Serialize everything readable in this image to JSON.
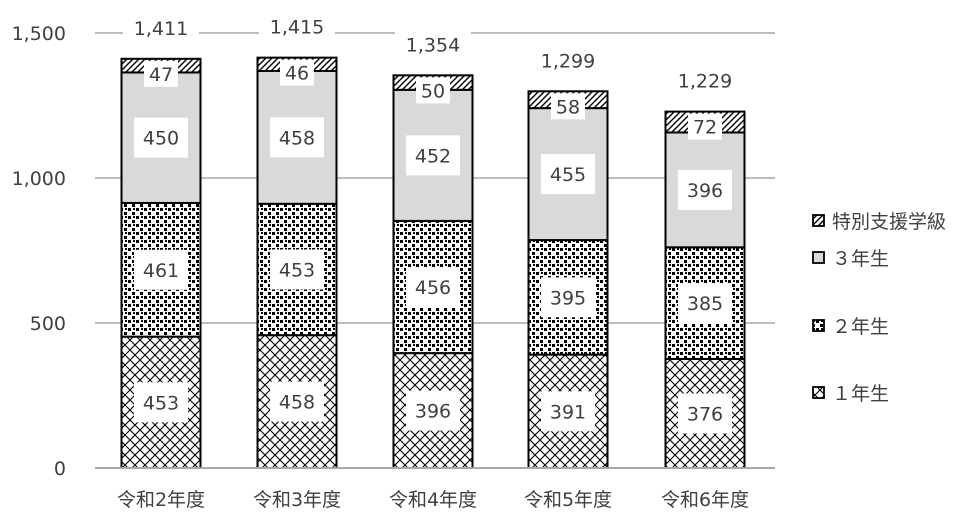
{
  "chart_data": {
    "type": "bar",
    "stacked": true,
    "categories": [
      "令和2年度",
      "令和3年度",
      "令和4年度",
      "令和5年度",
      "令和6年度"
    ],
    "series": [
      {
        "name": "1年生",
        "values": [
          453,
          458,
          396,
          391,
          376
        ],
        "pattern": "crosshatch"
      },
      {
        "name": "2年生",
        "values": [
          461,
          453,
          456,
          395,
          385
        ],
        "pattern": "dots"
      },
      {
        "name": "3年生",
        "values": [
          450,
          458,
          452,
          455,
          396
        ],
        "pattern": "solid",
        "color": "#d9d9d9"
      },
      {
        "name": "特別支援学級",
        "values": [
          47,
          46,
          50,
          58,
          72
        ],
        "pattern": "diagonal"
      }
    ],
    "totals": [
      1411,
      1415,
      1354,
      1299,
      1229
    ],
    "series_labels": {
      "1年生": [
        "453",
        "458",
        "396",
        "391",
        "376"
      ],
      "2年生": [
        "461",
        "453",
        "456",
        "395",
        "385"
      ],
      "3年生": [
        "450",
        "458",
        "452",
        "455",
        "396"
      ],
      "特別支援学級": [
        "47",
        "46",
        "50",
        "58",
        "72"
      ]
    },
    "total_labels": [
      "1,411",
      "1,415",
      "1,354",
      "1,299",
      "1,229"
    ],
    "yticks": [
      0,
      500,
      1000,
      1500
    ],
    "ytick_labels": [
      "0",
      "500",
      "1,000",
      "1,500"
    ],
    "ylim": [
      0,
      1500
    ],
    "grid": true,
    "legend_position": "right",
    "legend": [
      {
        "series": "特別支援学級",
        "label": "特別支援学級"
      },
      {
        "series": "3年生",
        "label": "３年生"
      },
      {
        "series": "2年生",
        "label": "２年生"
      },
      {
        "series": "1年生",
        "label": "１年生"
      }
    ],
    "colors": {
      "ink": "#000000",
      "grid": "#a6a6a6",
      "text": "#404040",
      "fill3": "#d9d9d9"
    }
  }
}
